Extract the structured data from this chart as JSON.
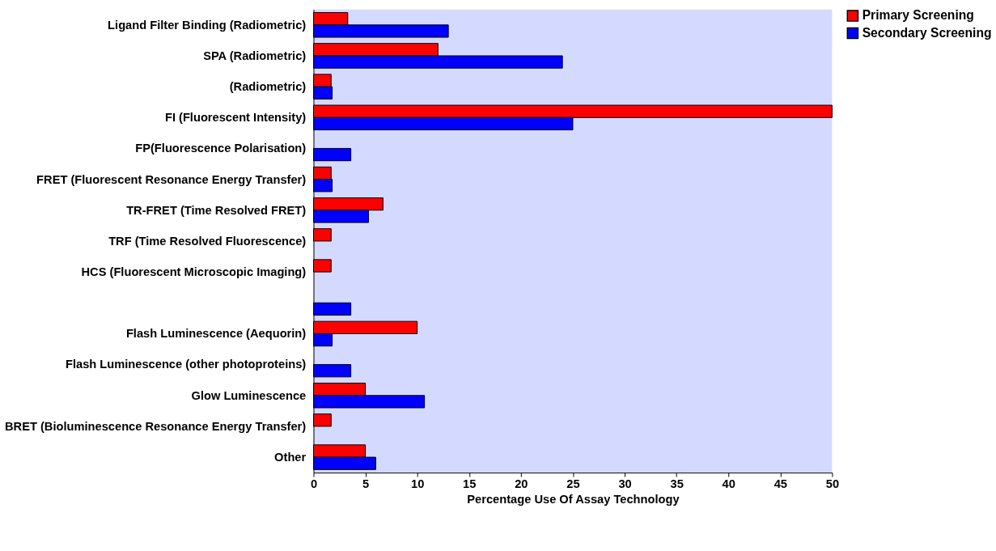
{
  "chart_data": {
    "type": "bar",
    "orientation": "horizontal",
    "xlabel": "Percentage Use Of Assay Technology",
    "categories": [
      "Ligand Filter Binding (Radiometric)",
      "SPA (Radiometric)",
      "(Radiometric)",
      "FI (Fluorescent Intensity)",
      "FP(Fluorescence Polarisation)",
      "FRET (Fluorescent Resonance Energy Transfer)",
      "TR-FRET (Time Resolved FRET)",
      "TRF (Time Resolved Fluorescence)",
      "HCS (Fluorescent Microscopic Imaging)",
      null,
      "Flash Luminescence (Aequorin)",
      "Flash Luminescence (other photoproteins)",
      "Glow Luminescence",
      "BRET (Bioluminescence Resonance Energy Transfer)",
      "Other"
    ],
    "series": [
      {
        "name": "Primary Screening",
        "color": "#ff0000",
        "values": [
          3.3,
          12,
          1.7,
          50,
          null,
          1.7,
          6.7,
          1.7,
          1.7,
          null,
          10,
          null,
          5,
          1.7,
          5
        ]
      },
      {
        "name": "Secondary Screening",
        "color": "#0000ff",
        "values": [
          13,
          24,
          1.8,
          25,
          3.6,
          1.8,
          5.3,
          null,
          null,
          3.6,
          1.8,
          3.6,
          10.7,
          null,
          6
        ]
      }
    ],
    "xlim": [
      0,
      50
    ],
    "xticks": [
      0,
      5,
      10,
      15,
      20,
      25,
      30,
      35,
      40,
      45,
      50
    ],
    "grid": false,
    "legend": "right"
  }
}
